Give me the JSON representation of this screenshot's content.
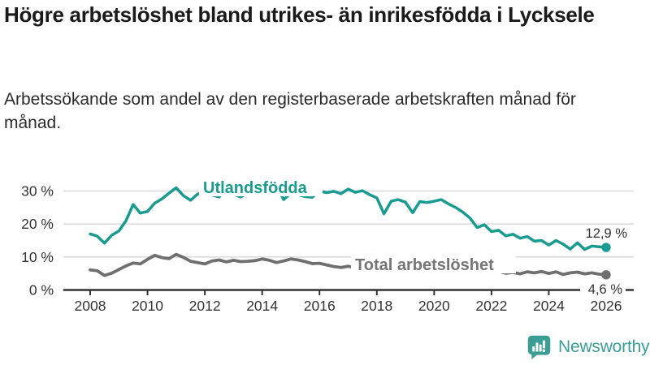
{
  "header": {
    "title": "Högre arbetslöshet bland utrikes- än inrikesfödda i Lycksele",
    "subtitle": "Arbetssökande som andel av den registerbaserade arbetskraften månad för månad."
  },
  "chart_data": {
    "type": "line",
    "unit": "%",
    "grid": true,
    "x_start": 2008,
    "x_step": 0.25,
    "x_ticks": [
      2008,
      2010,
      2012,
      2014,
      2016,
      2018,
      2020,
      2022,
      2024,
      2026
    ],
    "y_ticks": [
      0,
      10,
      20,
      30
    ],
    "y_tick_labels": [
      "0 %",
      "10 %",
      "20 %",
      "30 %"
    ],
    "ylim": [
      0,
      34
    ],
    "xlim": [
      2008,
      2026.9
    ],
    "series": [
      {
        "name": "Utlandsfödda",
        "color": "#199b8f",
        "end_label": "12,9 %",
        "end_value": 12.9,
        "values": [
          17.0,
          16.3,
          14.2,
          16.6,
          17.9,
          21.0,
          25.9,
          23.3,
          23.8,
          26.3,
          27.6,
          29.3,
          31.0,
          28.6,
          27.2,
          29.1,
          29.6,
          28.8,
          28.2,
          30.9,
          29.0,
          28.2,
          29.4,
          28.8,
          30.8,
          29.2,
          31.5,
          27.4,
          29.3,
          28.9,
          28.3,
          28.1,
          30.0,
          29.5,
          29.9,
          29.2,
          30.6,
          29.6,
          30.1,
          28.9,
          27.9,
          23.1,
          26.9,
          27.4,
          26.6,
          23.4,
          26.8,
          26.5,
          26.9,
          27.4,
          26.1,
          25.0,
          23.6,
          21.8,
          18.9,
          19.8,
          17.7,
          18.1,
          16.4,
          16.9,
          15.7,
          16.2,
          14.8,
          15.0,
          13.6,
          15.0,
          13.9,
          12.4,
          14.3,
          12.3,
          13.3,
          13.1,
          12.9
        ]
      },
      {
        "name": "Total arbetslöshet",
        "color": "#6f6f6f",
        "label_color": "#757575",
        "end_label": "4,6 %",
        "end_value": 4.6,
        "values": [
          6.1,
          5.8,
          4.4,
          5.1,
          6.2,
          7.3,
          8.2,
          7.9,
          9.3,
          10.5,
          9.8,
          9.5,
          10.8,
          9.9,
          8.7,
          8.3,
          7.9,
          8.8,
          9.1,
          8.5,
          9.0,
          8.6,
          8.7,
          8.9,
          9.4,
          9.0,
          8.3,
          8.8,
          9.4,
          9.1,
          8.6,
          8.0,
          8.1,
          7.6,
          7.1,
          6.8,
          7.2,
          6.7,
          6.9,
          6.4,
          6.6,
          5.9,
          6.2,
          6.0,
          6.3,
          6.1,
          6.4,
          6.6,
          6.9,
          8.4,
          8.1,
          7.8,
          7.4,
          6.9,
          6.3,
          6.0,
          5.8,
          5.6,
          5.1,
          5.3,
          4.9,
          5.5,
          5.2,
          5.6,
          5.0,
          5.5,
          4.7,
          5.2,
          5.4,
          4.9,
          5.2,
          4.8,
          4.6
        ]
      }
    ]
  },
  "footer": {
    "brand": "Newsworthy"
  }
}
